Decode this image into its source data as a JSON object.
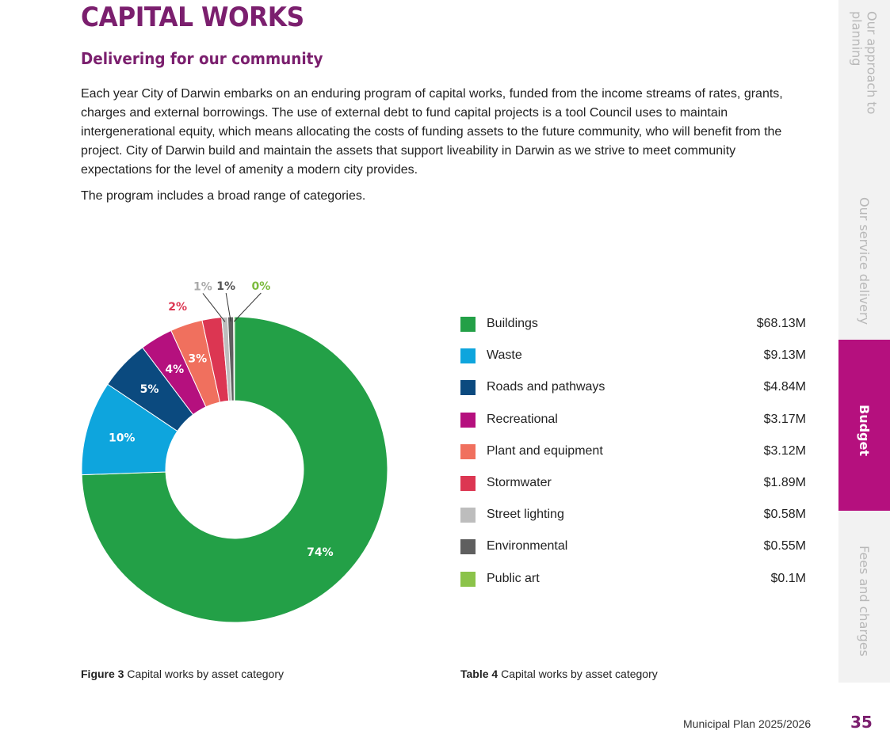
{
  "header": {
    "title": "CAPITAL WORKS",
    "subtitle": "Delivering for our community"
  },
  "intro": {
    "paragraph1": "Each year City of Darwin embarks on an enduring program of capital works, funded from the income streams of rates, grants, charges and external borrowings. The use of external debt to fund capital projects is a tool Council uses to maintain intergenerational equity, which means allocating the costs of funding assets to the future community, who will benefit from the project. City of Darwin build and maintain the assets that support liveability in Darwin as we strive to meet community expectations for the level of amenity a modern city provides.",
    "paragraph2": "The program includes a broad range of categories."
  },
  "chart_data": {
    "type": "pie",
    "donut": true,
    "title": "Capital works by asset category",
    "categories": [
      "Buildings",
      "Waste",
      "Roads and pathways",
      "Recreational",
      "Plant and equipment",
      "Stormwater",
      "Street lighting",
      "Environmental",
      "Public art"
    ],
    "values": [
      68.13,
      9.13,
      4.84,
      3.17,
      3.12,
      1.89,
      0.58,
      0.55,
      0.1
    ],
    "percent_labels": [
      "74%",
      "10%",
      "5%",
      "4%",
      "3%",
      "2%",
      "1%",
      "1%",
      "0%"
    ],
    "colors": [
      "#23a047",
      "#0ea5dd",
      "#0b4a7f",
      "#b5107e",
      "#f0705e",
      "#dc3652",
      "#bdbdbd",
      "#5f5f5f",
      "#8bc34a"
    ],
    "unit": "$M"
  },
  "legend": {
    "items": [
      {
        "label": "Buildings",
        "value": "$68.13M",
        "color": "#23a047"
      },
      {
        "label": "Waste",
        "value": "$9.13M",
        "color": "#0ea5dd"
      },
      {
        "label": "Roads and pathways",
        "value": "$4.84M",
        "color": "#0b4a7f"
      },
      {
        "label": "Recreational",
        "value": "$3.17M",
        "color": "#b5107e"
      },
      {
        "label": "Plant and equipment",
        "value": "$3.12M",
        "color": "#f0705e"
      },
      {
        "label": "Stormwater",
        "value": "$1.89M",
        "color": "#dc3652"
      },
      {
        "label": "Street lighting",
        "value": "$0.58M",
        "color": "#bdbdbd"
      },
      {
        "label": "Environmental",
        "value": "$0.55M",
        "color": "#5f5f5f"
      },
      {
        "label": "Public art",
        "value": "$0.1M",
        "color": "#8bc34a"
      }
    ]
  },
  "captions": {
    "figure_prefix": "Figure 3",
    "figure_text": "Capital works by asset category",
    "table_prefix": "Table 4",
    "table_text": "Capital works by asset category"
  },
  "sidebar": {
    "tabs": [
      {
        "label": "Our approach to planning",
        "active": false
      },
      {
        "label": "Our service delivery",
        "active": false
      },
      {
        "label": "Budget",
        "active": true
      },
      {
        "label": "Fees and charges",
        "active": false
      }
    ]
  },
  "footer": {
    "document": "Municipal Plan 2025/2026",
    "page_number": "35"
  }
}
